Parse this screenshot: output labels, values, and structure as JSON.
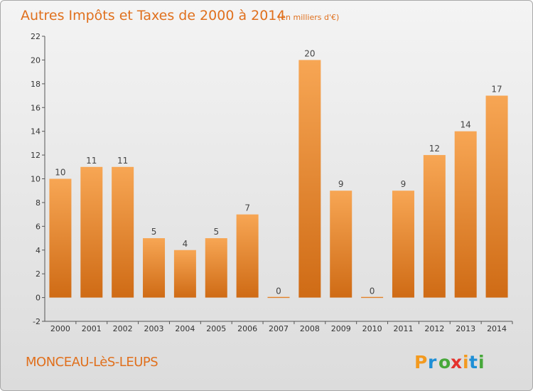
{
  "chart_data": {
    "type": "bar",
    "title": "Autres Impôts et Taxes de 2000 à 2014",
    "subtitle": "(en milliers d'€)",
    "categories": [
      "2000",
      "2001",
      "2002",
      "2003",
      "2004",
      "2005",
      "2006",
      "2007",
      "2008",
      "2009",
      "2010",
      "2011",
      "2012",
      "2013",
      "2014"
    ],
    "values": [
      10,
      11,
      11,
      5,
      4,
      5,
      7,
      0,
      20,
      9,
      0,
      9,
      12,
      14,
      17
    ],
    "value_labels": [
      "10",
      "11",
      "11",
      "5",
      "4",
      "5",
      "7",
      "0",
      "20",
      "9",
      "0",
      "9",
      "12",
      "14",
      "17"
    ],
    "ylim": [
      -2,
      22
    ],
    "yticks": [
      -2,
      0,
      2,
      4,
      6,
      8,
      10,
      12,
      14,
      16,
      18,
      20,
      22
    ],
    "ytick_labels": [
      "-2",
      "0",
      "2",
      "4",
      "6",
      "8",
      "10",
      "12",
      "14",
      "16",
      "18",
      "20",
      "22"
    ],
    "xlabel": "",
    "ylabel": "",
    "grid": false,
    "legend": "none"
  },
  "colors": {
    "bar_light": "#f7a654",
    "bar_dark": "#d26f18",
    "accent": "#e0701d",
    "axis": "#555555"
  },
  "footer": {
    "commune": "MONCEAU-LèS-LEUPS",
    "logo": "Proxiti"
  }
}
